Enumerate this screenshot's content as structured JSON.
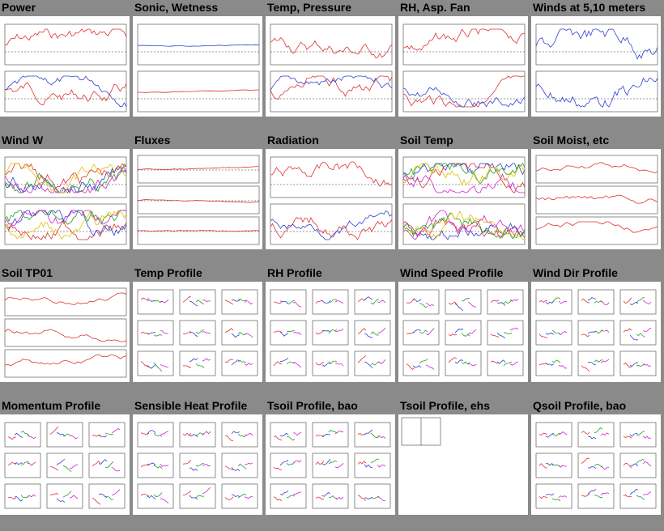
{
  "rows": [
    {
      "tiles": [
        {
          "title": "Power",
          "kind": "ts2"
        },
        {
          "title": "Sonic, Wetness",
          "kind": "ts2flat"
        },
        {
          "title": "Temp, Pressure",
          "kind": "ts2"
        },
        {
          "title": "RH, Asp. Fan",
          "kind": "ts2"
        },
        {
          "title": "Winds at 5,10 meters",
          "kind": "ts2blue"
        }
      ]
    },
    {
      "tiles": [
        {
          "title": "Wind W",
          "kind": "ts2multi"
        },
        {
          "title": "Fluxes",
          "kind": "ts3flat"
        },
        {
          "title": "Radiation",
          "kind": "ts2"
        },
        {
          "title": "Soil Temp",
          "kind": "ts2multi"
        },
        {
          "title": "Soil Moist, etc",
          "kind": "ts3"
        }
      ]
    },
    {
      "tiles": [
        {
          "title": "Soil TP01",
          "kind": "ts3"
        },
        {
          "title": "Temp Profile",
          "kind": "profile"
        },
        {
          "title": "RH Profile",
          "kind": "profile"
        },
        {
          "title": "Wind Speed Profile",
          "kind": "profile"
        },
        {
          "title": "Wind Dir Profile",
          "kind": "profile"
        }
      ]
    },
    {
      "tiles": [
        {
          "title": "Momentum Profile",
          "kind": "profile"
        },
        {
          "title": "Sensible Heat Profile",
          "kind": "profile"
        },
        {
          "title": "Tsoil Profile, bao",
          "kind": "profile"
        },
        {
          "title": "Tsoil Profile, ehs",
          "kind": "empty"
        },
        {
          "title": "Qsoil Profile, bao",
          "kind": "profile"
        }
      ]
    }
  ],
  "colors": {
    "background": "#8a8a8a",
    "series": [
      "#e03030",
      "#3040d0",
      "#20a020",
      "#d020d0",
      "#e0c000",
      "#30c0c0",
      "#e08020"
    ]
  }
}
